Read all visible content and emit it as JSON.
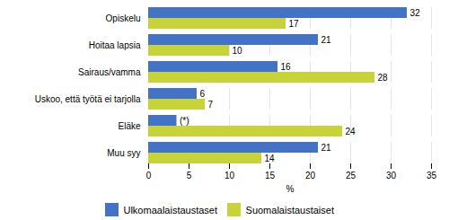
{
  "chart_data": {
    "type": "bar",
    "orientation": "horizontal",
    "categories": [
      "Opiskelu",
      "Hoitaa lapsia",
      "Sairaus/vamma",
      "Uskoo, että työtä ei tarjolla",
      "Eläke",
      "Muu syy"
    ],
    "series": [
      {
        "name": "Ulkomaalaistaustaset",
        "color": "#4472c4",
        "values": [
          32,
          21,
          16,
          6,
          3.5,
          21
        ],
        "value_labels": [
          "32",
          "21",
          "16",
          "6",
          "(*)",
          "21"
        ]
      },
      {
        "name": "Suomalaistaustaiset",
        "color": "#c6d43a",
        "values": [
          17,
          10,
          28,
          7,
          24,
          14
        ],
        "value_labels": [
          "17",
          "10",
          "28",
          "7",
          "24",
          "14"
        ]
      }
    ],
    "xlabel": "%",
    "xlim": [
      0,
      35
    ],
    "xticks": [
      0,
      5,
      10,
      15,
      20,
      25,
      30,
      35
    ],
    "grid": true,
    "data_labels": true,
    "legend": "bottom"
  }
}
